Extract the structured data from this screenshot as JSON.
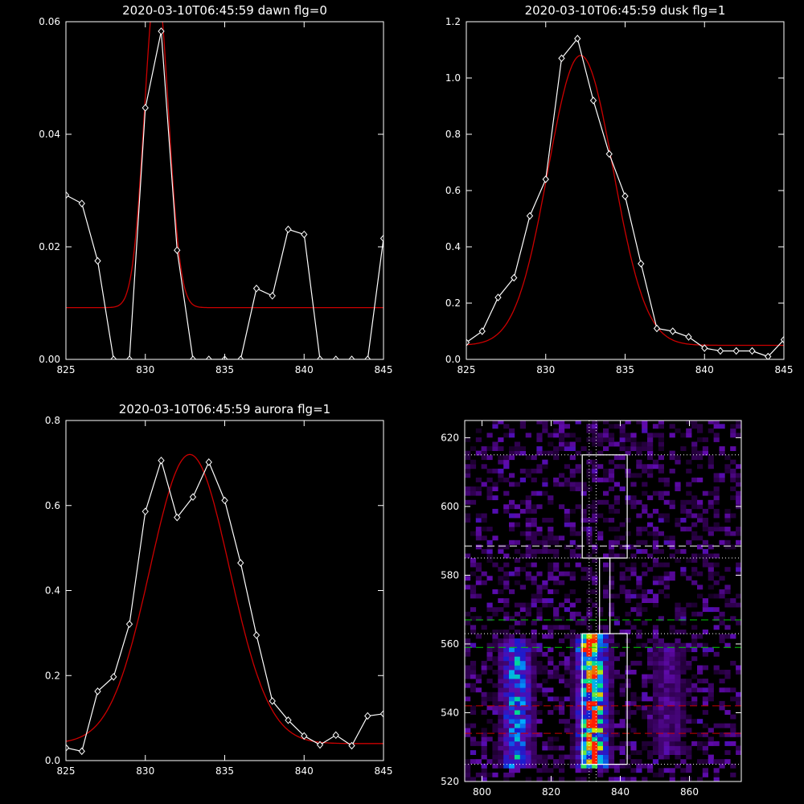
{
  "colors": {
    "background": "#000000",
    "axes": "#ffffff",
    "observed": "#ffffff",
    "fit": "#cc0000"
  },
  "chart_data": [
    {
      "type": "line",
      "title": "2020-03-10T06:45:59 dawn flg=0",
      "xlim": [
        825,
        845
      ],
      "ylim": [
        0,
        0.06
      ],
      "xticks": [
        "825",
        "830",
        "835",
        "840",
        "845"
      ],
      "yticks": [
        "0.00",
        "0.02",
        "0.04",
        "0.06"
      ],
      "x": [
        825,
        826,
        827,
        828,
        829,
        830,
        831,
        832,
        833,
        834,
        835,
        836,
        837,
        838,
        839,
        840,
        841,
        842,
        843,
        844,
        845
      ],
      "series": [
        {
          "role": "observed",
          "marker": "diamond",
          "values": [
            0.0292,
            0.0277,
            0.0175,
            0,
            0,
            0.0447,
            0.0583,
            0.0194,
            0,
            0,
            0,
            0,
            0.0126,
            0.0113,
            0.0231,
            0.0222,
            0,
            0,
            0,
            0,
            0.0215
          ]
        },
        {
          "role": "fit",
          "marker": "none",
          "gaussian": {
            "base": 0.0092,
            "amp": 0.058,
            "center": 830.7,
            "sigma": 0.75
          }
        }
      ]
    },
    {
      "type": "line",
      "title": "2020-03-10T06:45:59 dusk flg=1",
      "xlim": [
        825,
        845
      ],
      "ylim": [
        0,
        1.2
      ],
      "xticks": [
        "825",
        "830",
        "835",
        "840",
        "845"
      ],
      "yticks": [
        "0.0",
        "0.2",
        "0.4",
        "0.6",
        "0.8",
        "1.0",
        "1.2"
      ],
      "x": [
        825,
        826,
        827,
        828,
        829,
        830,
        831,
        832,
        833,
        834,
        835,
        836,
        837,
        838,
        839,
        840,
        841,
        842,
        843,
        844,
        845
      ],
      "series": [
        {
          "role": "observed",
          "marker": "diamond",
          "values": [
            0.06,
            0.1,
            0.22,
            0.29,
            0.51,
            0.64,
            1.07,
            1.14,
            0.92,
            0.73,
            0.58,
            0.34,
            0.11,
            0.1,
            0.08,
            0.04,
            0.03,
            0.03,
            0.03,
            0.01,
            0.07
          ]
        },
        {
          "role": "fit",
          "marker": "none",
          "gaussian": {
            "base": 0.05,
            "amp": 1.03,
            "center": 832.2,
            "sigma": 2.05
          }
        }
      ]
    },
    {
      "type": "line",
      "title": "2020-03-10T06:45:59 aurora flg=1",
      "xlim": [
        825,
        845
      ],
      "ylim": [
        0,
        0.8
      ],
      "xticks": [
        "825",
        "830",
        "835",
        "840",
        "845"
      ],
      "yticks": [
        "0.0",
        "0.2",
        "0.4",
        "0.6",
        "0.8"
      ],
      "x": [
        825,
        826,
        827,
        828,
        829,
        830,
        831,
        832,
        833,
        834,
        835,
        836,
        837,
        838,
        839,
        840,
        841,
        842,
        843,
        844,
        845
      ],
      "series": [
        {
          "role": "observed",
          "marker": "diamond",
          "values": [
            0.03,
            0.022,
            0.163,
            0.197,
            0.321,
            0.586,
            0.706,
            0.572,
            0.62,
            0.702,
            0.612,
            0.465,
            0.295,
            0.14,
            0.095,
            0.058,
            0.037,
            0.06,
            0.035,
            0.105,
            0.11
          ]
        },
        {
          "role": "fit",
          "marker": "none",
          "gaussian": {
            "base": 0.04,
            "amp": 0.68,
            "center": 832.8,
            "sigma": 2.5
          }
        }
      ]
    },
    {
      "type": "heatmap",
      "xlim": [
        795,
        875
      ],
      "ylim": [
        520,
        625
      ],
      "xticks": [
        "800",
        "820",
        "840",
        "860"
      ],
      "yticks": [
        "520",
        "540",
        "560",
        "580",
        "600",
        "620"
      ],
      "emission_bands": [
        {
          "x_center": 810,
          "x_width": 3.2,
          "y_range": [
            524,
            562
          ],
          "peak": 0.62
        },
        {
          "x_center": 832,
          "x_width": 3.0,
          "y_range": [
            524,
            563
          ],
          "peak": 1.0
        },
        {
          "x_center": 854,
          "x_width": 3.5,
          "y_range": [
            528,
            560
          ],
          "peak": 0.28
        }
      ],
      "hot_spot": {
        "x": 830.5,
        "y": 558.8
      },
      "boxes": [
        {
          "x": [
            829,
            842
          ],
          "y": [
            525,
            563
          ]
        },
        {
          "x": [
            834,
            837
          ],
          "y": [
            563,
            585
          ]
        },
        {
          "x": [
            829,
            842
          ],
          "y": [
            585,
            615
          ]
        }
      ],
      "hlines": [
        {
          "y": 615,
          "style": "dotted",
          "color": "#ffffff"
        },
        {
          "y": 588.5,
          "style": "dashed",
          "color": "#ffffff"
        },
        {
          "y": 585,
          "style": "dotted",
          "color": "#ffffff"
        },
        {
          "y": 567,
          "style": "dashed",
          "color": "#00cc00"
        },
        {
          "y": 563,
          "style": "dotted",
          "color": "#ffffff"
        },
        {
          "y": 559,
          "style": "dashed",
          "color": "#00cc00"
        },
        {
          "y": 542,
          "style": "dashed",
          "color": "#cc0000"
        },
        {
          "y": 534,
          "style": "dashed",
          "color": "#cc0000"
        },
        {
          "y": 525,
          "style": "dotted",
          "color": "#ffffff"
        }
      ],
      "vlines": [
        {
          "x": 831,
          "style": "dotted",
          "color": "#ffffff"
        },
        {
          "x": 833,
          "style": "dotted",
          "color": "#ffffff"
        }
      ]
    }
  ]
}
